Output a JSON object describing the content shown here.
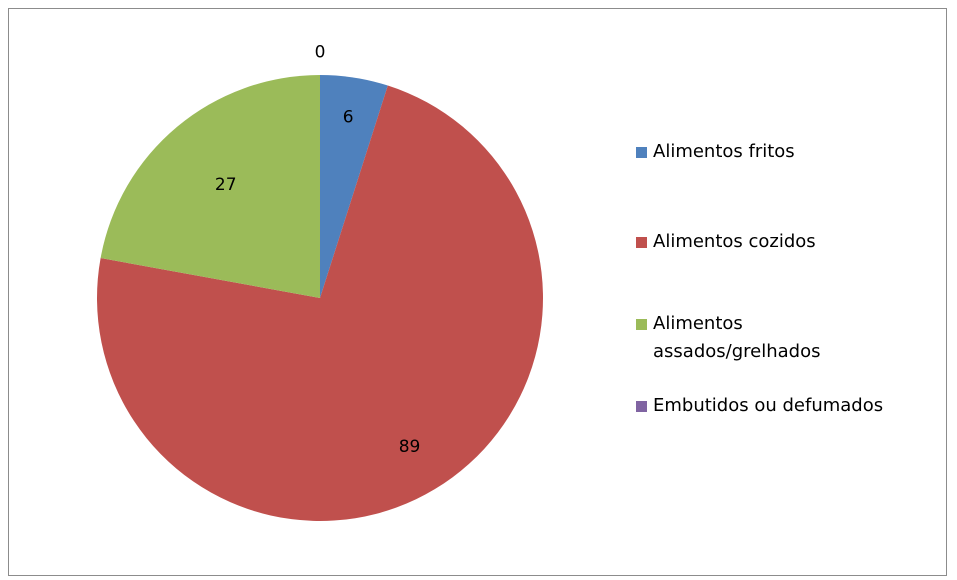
{
  "chart_data": {
    "type": "pie",
    "categories": [
      "Alimentos fritos",
      "Alimentos cozidos",
      "Alimentos assados/grelhados",
      "Embutidos ou defumados"
    ],
    "values": [
      6,
      89,
      27,
      0
    ],
    "data_labels": [
      "6",
      "89",
      "27",
      "0"
    ],
    "colors": [
      "#4f81bd",
      "#c0504d",
      "#9bbb59",
      "#8064a2"
    ],
    "legend_position": "right",
    "start_angle_deg": 0,
    "direction": "clockwise"
  },
  "legend": {
    "items": [
      {
        "label": "Alimentos fritos",
        "color": "#4f81bd"
      },
      {
        "label": "Alimentos cozidos",
        "color": "#c0504d"
      },
      {
        "label": "Alimentos assados/grelhados",
        "color": "#9bbb59"
      },
      {
        "label": "Embutidos ou defumados",
        "color": "#8064a2"
      }
    ]
  }
}
